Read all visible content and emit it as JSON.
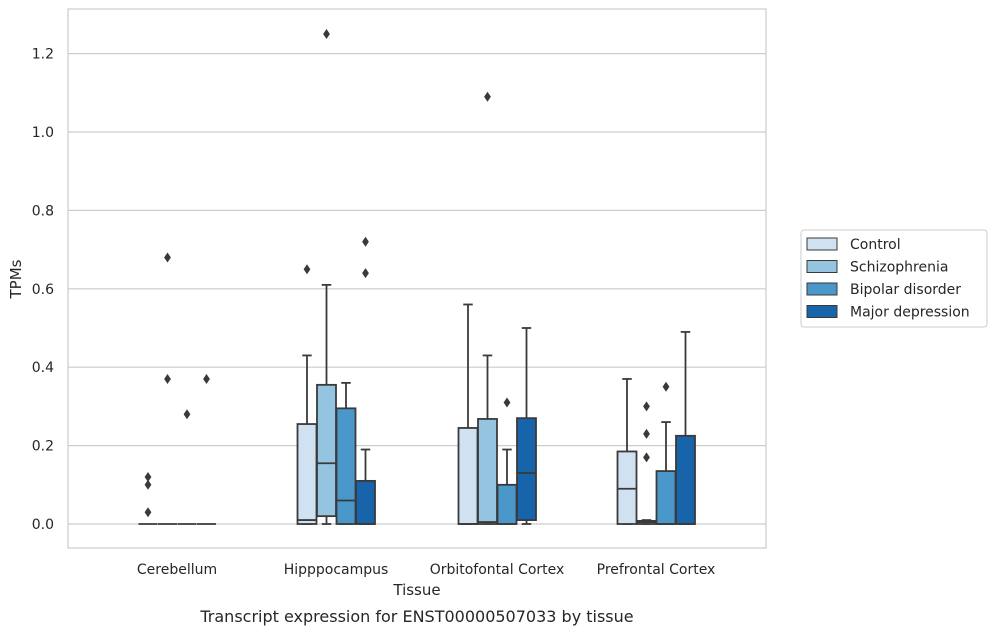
{
  "chart_data": {
    "type": "boxplot",
    "caption": "Transcript expression for ENST00000507033 by tissue",
    "xlabel": "Tissue",
    "ylabel": "TPMs",
    "ylim": [
      -0.06,
      1.32
    ],
    "yticks": [
      0.0,
      0.2,
      0.4,
      0.6,
      0.8,
      1.0,
      1.2
    ],
    "grid": "horizontal",
    "legend_position": "right",
    "categories": [
      "Cerebellum",
      "Hipppocampus",
      "Orbitofontal Cortex",
      "Prefrontal Cortex"
    ],
    "series": [
      {
        "name": "Control",
        "color": "#d0e1f2",
        "boxes": [
          {
            "min": 0.0,
            "q1": 0.0,
            "median": 0.0,
            "q3": 0.0,
            "max": 0.0,
            "outliers": [
              0.12,
              0.1,
              0.03
            ]
          },
          {
            "min": 0.0,
            "q1": 0.0,
            "median": 0.01,
            "q3": 0.255,
            "max": 0.43,
            "outliers": [
              0.65
            ]
          },
          {
            "min": 0.0,
            "q1": 0.0,
            "median": 0.0,
            "q3": 0.245,
            "max": 0.56,
            "outliers": []
          },
          {
            "min": 0.0,
            "q1": 0.0,
            "median": 0.09,
            "q3": 0.185,
            "max": 0.37,
            "outliers": []
          }
        ]
      },
      {
        "name": "Schizophrenia",
        "color": "#94c4df",
        "boxes": [
          {
            "min": 0.0,
            "q1": 0.0,
            "median": 0.0,
            "q3": 0.0,
            "max": 0.0,
            "outliers": [
              0.68,
              0.37
            ]
          },
          {
            "min": 0.0,
            "q1": 0.02,
            "median": 0.155,
            "q3": 0.355,
            "max": 0.61,
            "outliers": [
              1.25
            ]
          },
          {
            "min": 0.0,
            "q1": 0.0,
            "median": 0.005,
            "q3": 0.268,
            "max": 0.43,
            "outliers": [
              1.09
            ]
          },
          {
            "min": 0.0,
            "q1": 0.0,
            "median": 0.005,
            "q3": 0.008,
            "max": 0.01,
            "outliers": [
              0.3,
              0.23,
              0.17
            ]
          }
        ]
      },
      {
        "name": "Bipolar disorder",
        "color": "#4a98c9",
        "boxes": [
          {
            "min": 0.0,
            "q1": 0.0,
            "median": 0.0,
            "q3": 0.0,
            "max": 0.0,
            "outliers": [
              0.28
            ]
          },
          {
            "min": 0.0,
            "q1": 0.0,
            "median": 0.06,
            "q3": 0.295,
            "max": 0.36,
            "outliers": []
          },
          {
            "min": 0.0,
            "q1": 0.0,
            "median": 0.0,
            "q3": 0.1,
            "max": 0.19,
            "outliers": [
              0.31
            ]
          },
          {
            "min": 0.0,
            "q1": 0.0,
            "median": 0.0,
            "q3": 0.135,
            "max": 0.26,
            "outliers": [
              0.35
            ]
          }
        ]
      },
      {
        "name": "Major depression",
        "color": "#1764ab",
        "boxes": [
          {
            "min": 0.0,
            "q1": 0.0,
            "median": 0.0,
            "q3": 0.0,
            "max": 0.0,
            "outliers": [
              0.37
            ]
          },
          {
            "min": 0.0,
            "q1": 0.0,
            "median": 0.0,
            "q3": 0.11,
            "max": 0.19,
            "outliers": [
              0.72,
              0.64
            ]
          },
          {
            "min": 0.0,
            "q1": 0.01,
            "median": 0.13,
            "q3": 0.27,
            "max": 0.5,
            "outliers": []
          },
          {
            "min": 0.0,
            "q1": 0.0,
            "median": 0.0,
            "q3": 0.225,
            "max": 0.49,
            "outliers": []
          }
        ]
      }
    ]
  },
  "style": {
    "line_color": "#3a3a3a",
    "grid_color": "#cccccc",
    "frame_color": "#cccccc",
    "outlier_color": "#3a3a3a"
  }
}
